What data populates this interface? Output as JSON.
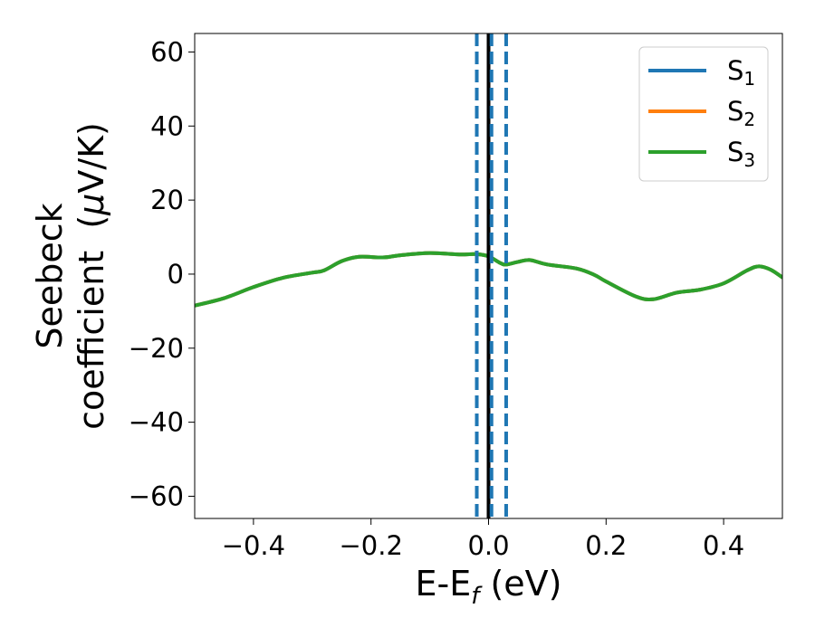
{
  "chart_data": {
    "type": "line",
    "xlabel": "E-E",
    "xlabel_sub": "f",
    "xlabel_unit": " (eV)",
    "ylabel_line1": "Seebeck",
    "ylabel_line2_prefix": "coefficient  (",
    "ylabel_mu": "μ",
    "ylabel_line2_suffix": "V/K)",
    "xlim": [
      -0.5,
      0.5
    ],
    "ylim": [
      -66,
      65
    ],
    "xticks": [
      -0.4,
      -0.2,
      0.0,
      0.2,
      0.4
    ],
    "xtick_labels": [
      "−0.4",
      "−0.2",
      "0.0",
      "0.2",
      "0.4"
    ],
    "yticks": [
      60,
      40,
      20,
      0,
      -20,
      -40,
      -60
    ],
    "ytick_labels": [
      "60",
      "40",
      "20",
      "0",
      "−20",
      "−40",
      "−60"
    ],
    "grid": false,
    "legend_position": "top-right",
    "vertical_lines": [
      {
        "x": -0.02,
        "style": "dashed",
        "color": "#1f77b4"
      },
      {
        "x": 0.0,
        "style": "solid",
        "color": "#000000"
      },
      {
        "x": 0.005,
        "style": "dashed",
        "color": "#1f77b4"
      },
      {
        "x": 0.03,
        "style": "dashed",
        "color": "#1f77b4"
      }
    ],
    "x": [
      -0.5,
      -0.45,
      -0.4,
      -0.35,
      -0.3,
      -0.28,
      -0.25,
      -0.22,
      -0.18,
      -0.15,
      -0.1,
      -0.05,
      -0.02,
      0.0,
      0.02,
      0.03,
      0.05,
      0.07,
      0.1,
      0.15,
      0.18,
      0.2,
      0.25,
      0.28,
      0.32,
      0.36,
      0.4,
      0.44,
      0.46,
      0.48,
      0.5
    ],
    "series": [
      {
        "name": "S",
        "sub": "1",
        "color": "#1f77b4",
        "values": [
          -8.5,
          -6.5,
          -3.5,
          -1.0,
          0.4,
          1.0,
          3.5,
          4.7,
          4.5,
          5.1,
          5.7,
          5.3,
          5.4,
          4.8,
          3.0,
          2.6,
          3.3,
          3.8,
          2.6,
          1.5,
          -0.2,
          -2.0,
          -6.0,
          -6.8,
          -5.0,
          -4.2,
          -2.5,
          1.0,
          2.1,
          1.2,
          -0.9
        ]
      },
      {
        "name": "S",
        "sub": "2",
        "color": "#ff7f0e",
        "values": [
          -8.5,
          -6.5,
          -3.5,
          -1.0,
          0.4,
          1.0,
          3.5,
          4.7,
          4.5,
          5.1,
          5.7,
          5.3,
          5.4,
          4.8,
          3.0,
          2.6,
          3.3,
          3.8,
          2.6,
          1.5,
          -0.2,
          -2.0,
          -6.0,
          -6.8,
          -5.0,
          -4.2,
          -2.5,
          1.0,
          2.1,
          1.2,
          -0.9
        ]
      },
      {
        "name": "S",
        "sub": "3",
        "color": "#2ca02c",
        "values": [
          -8.5,
          -6.5,
          -3.5,
          -1.0,
          0.4,
          1.0,
          3.5,
          4.7,
          4.5,
          5.1,
          5.7,
          5.3,
          5.4,
          4.8,
          3.0,
          2.6,
          3.3,
          3.8,
          2.6,
          1.5,
          -0.2,
          -2.0,
          -6.0,
          -6.8,
          -5.0,
          -4.2,
          -2.5,
          1.0,
          2.1,
          1.2,
          -0.9
        ]
      }
    ]
  }
}
